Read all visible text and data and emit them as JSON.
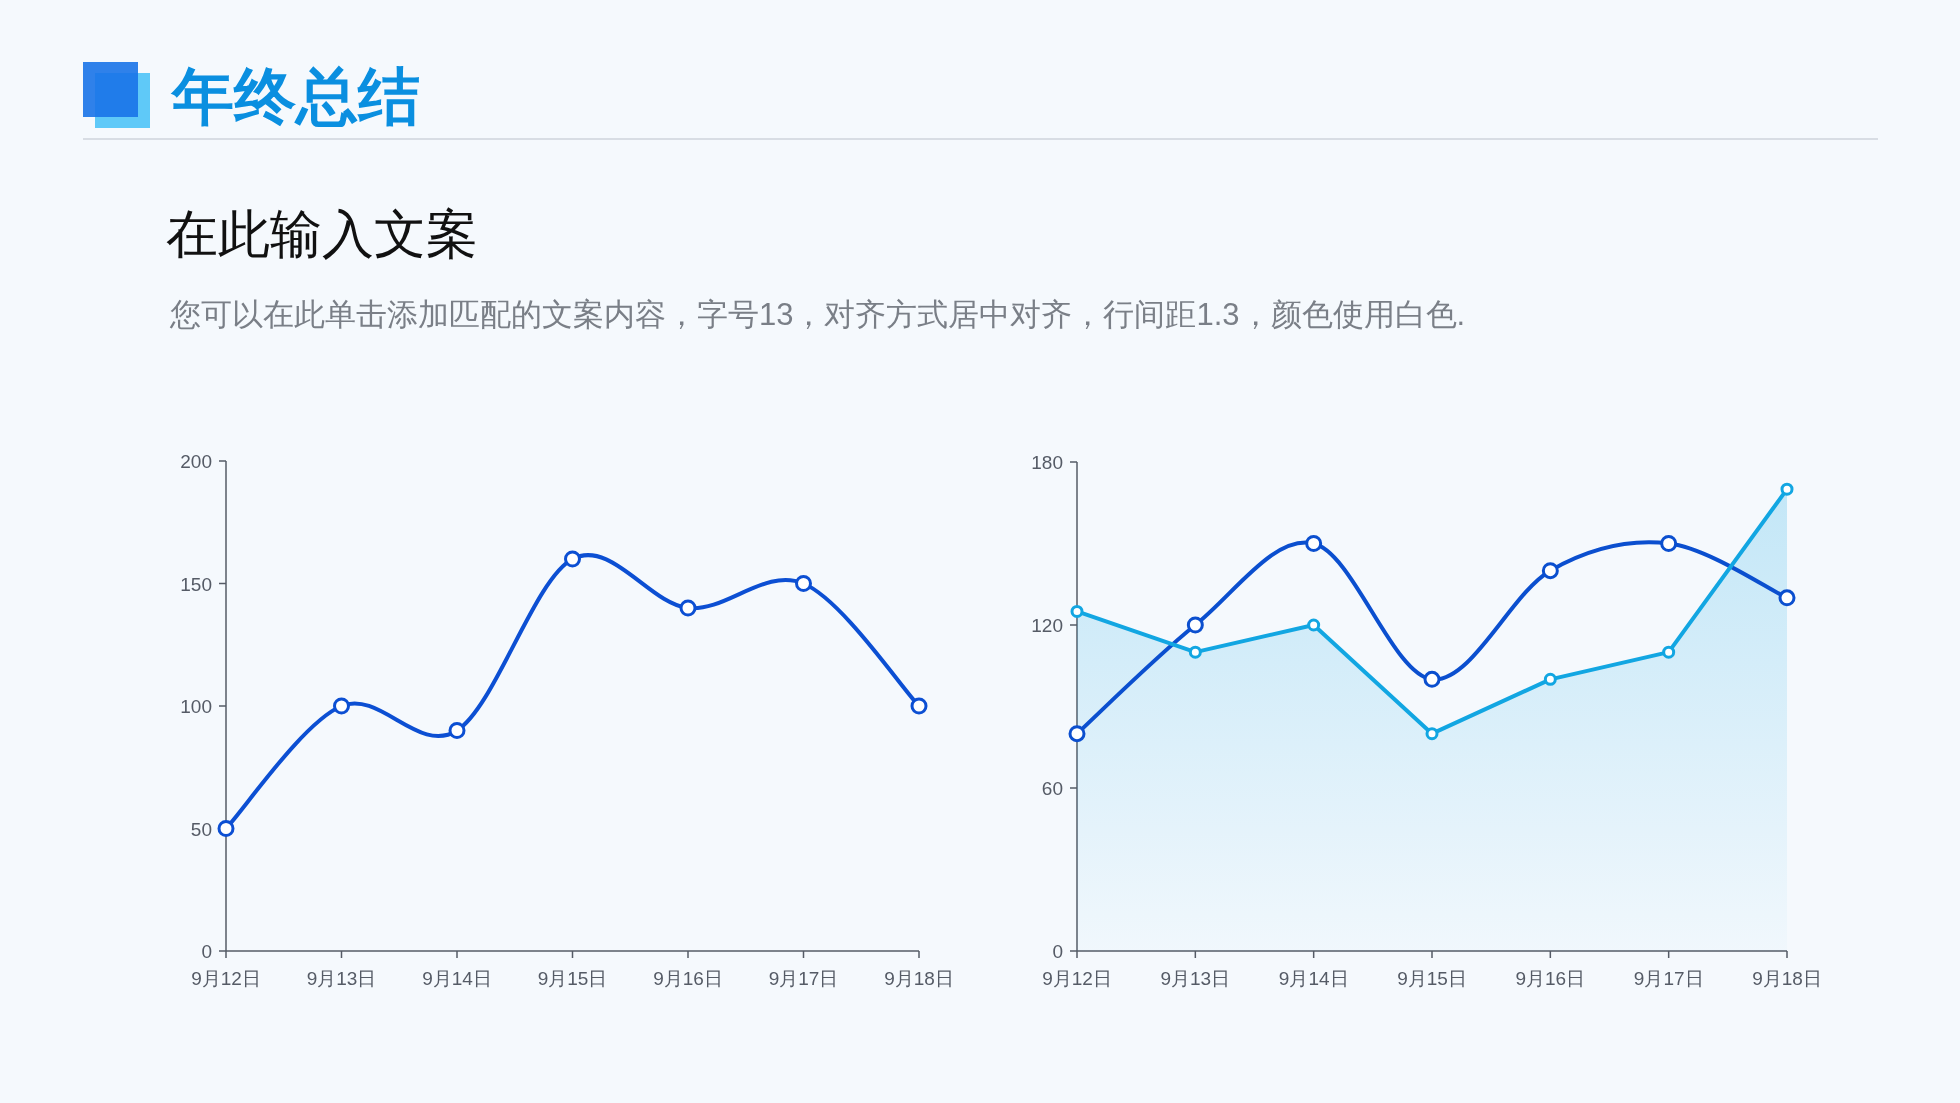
{
  "chart_data": [
    {
      "type": "line",
      "title": "年终总结",
      "subtitle": "在此输入文案",
      "annotations": [
        "您可以在此单击添加匹配的文案内容，字号13，对齐方式居中对齐，行间距1.3，颜色使用白色."
      ],
      "categories": [
        "9月12日",
        "9月13日",
        "9月14日",
        "9月15日",
        "9月16日",
        "9月17日",
        "9月18日"
      ],
      "marker": "circle",
      "ylim": [
        0,
        200
      ],
      "yticks": [
        0,
        50,
        100,
        150,
        200
      ],
      "series": [
        {
          "color": "#0c4fd3",
          "values": [
            50,
            100,
            90,
            160,
            140,
            150,
            100
          ]
        }
      ]
    },
    {
      "type": "line",
      "categories": [
        "9月12日",
        "9月13日",
        "9月14日",
        "9月15日",
        "9月16日",
        "9月17日",
        "9月18日"
      ],
      "marker": "circle",
      "ylim": [
        0,
        180
      ],
      "yticks": [
        0,
        60,
        120,
        180
      ],
      "series": [
        {
          "type": "line",
          "color": "#0b4fcf",
          "values": [
            80,
            120,
            150,
            100,
            140,
            150,
            130
          ]
        },
        {
          "type": "area",
          "color": "#12a6e2",
          "values": [
            125,
            110,
            120,
            80,
            100,
            110,
            170
          ]
        }
      ]
    }
  ]
}
